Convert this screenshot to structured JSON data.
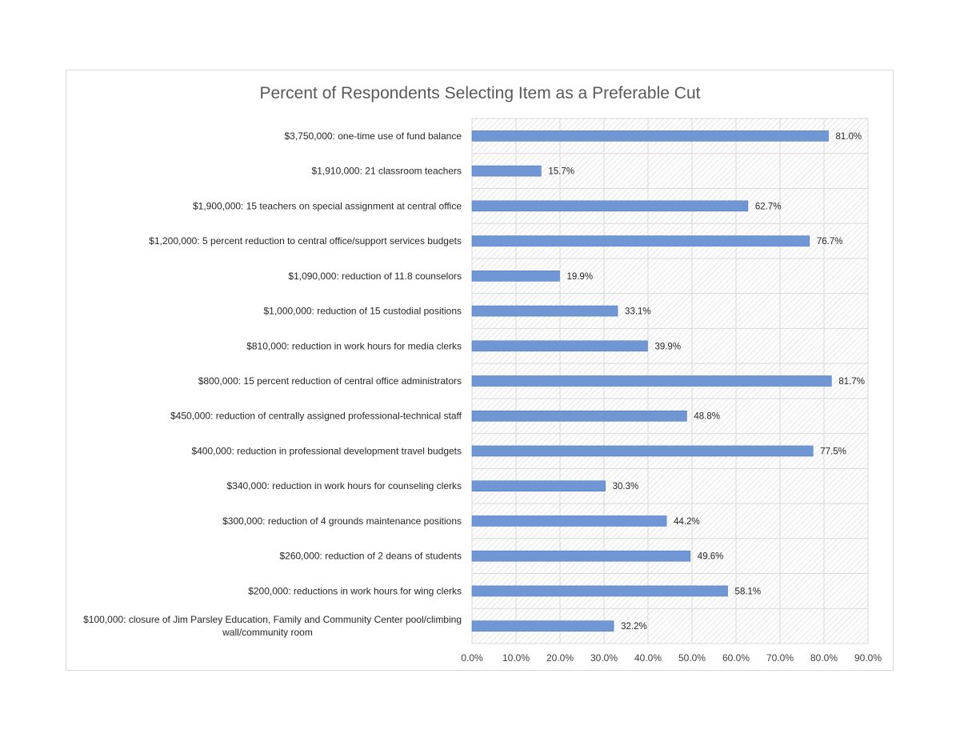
{
  "chart_data": {
    "type": "bar",
    "orientation": "horizontal",
    "title": "Percent of Respondents Selecting Item as a Preferable Cut",
    "xlabel": "",
    "ylabel": "",
    "xlim": [
      0,
      90
    ],
    "x_ticks": [
      0,
      10,
      20,
      30,
      40,
      50,
      60,
      70,
      80,
      90
    ],
    "x_tick_labels": [
      "0.0%",
      "10.0%",
      "20.0%",
      "30.0%",
      "40.0%",
      "50.0%",
      "60.0%",
      "70.0%",
      "80.0%",
      "90.0%"
    ],
    "grid": true,
    "legend": "none",
    "bar_color": "#7097d3",
    "categories": [
      "$3,750,000: one-time use of fund balance",
      "$1,910,000: 21 classroom teachers",
      "$1,900,000: 15 teachers on special assignment at central office",
      "$1,200,000: 5 percent reduction to central office/support services budgets",
      "$1,090,000: reduction of 11.8 counselors",
      "$1,000,000: reduction of 15 custodial positions",
      "$810,000: reduction in work hours for media clerks",
      "$800,000: 15 percent reduction of central office administrators",
      "$450,000: reduction of centrally assigned professional-technical staff",
      "$400,000: reduction in professional development travel budgets",
      "$340,000: reduction in work hours for counseling clerks",
      "$300,000: reduction of 4 grounds maintenance positions",
      "$260,000: reduction of 2 deans of students",
      "$200,000: reductions in work hours for wing clerks",
      "$100,000: closure of Jim Parsley Education, Family and Community Center pool/climbing wall/community room"
    ],
    "category_label_lines": [
      [
        "$3,750,000: one-time use of fund balance"
      ],
      [
        "$1,910,000: 21 classroom teachers"
      ],
      [
        "$1,900,000: 15 teachers on special assignment at central office"
      ],
      [
        "$1,200,000: 5 percent reduction to central office/support services budgets"
      ],
      [
        "$1,090,000: reduction of 11.8 counselors"
      ],
      [
        "$1,000,000: reduction of 15 custodial positions"
      ],
      [
        "$810,000: reduction in work hours for media clerks"
      ],
      [
        "$800,000: 15 percent reduction of central office administrators"
      ],
      [
        "$450,000: reduction of centrally assigned professional-technical staff"
      ],
      [
        "$400,000: reduction in professional development travel budgets"
      ],
      [
        "$340,000: reduction in work hours for counseling clerks"
      ],
      [
        "$300,000: reduction of 4 grounds maintenance positions"
      ],
      [
        "$260,000: reduction of 2 deans of students"
      ],
      [
        "$200,000: reductions in work hours for wing clerks"
      ],
      [
        "$100,000: closure of Jim Parsley Education, Family and Community Center pool/climbing",
        "wall/community room"
      ]
    ],
    "values": [
      81.0,
      15.7,
      62.7,
      76.7,
      19.9,
      33.1,
      39.9,
      81.7,
      48.8,
      77.5,
      30.3,
      44.2,
      49.6,
      58.1,
      32.2
    ],
    "data_labels": [
      "81.0%",
      "15.7%",
      "62.7%",
      "76.7%",
      "19.9%",
      "33.1%",
      "39.9%",
      "81.7%",
      "48.8%",
      "77.5%",
      "30.3%",
      "44.2%",
      "49.6%",
      "58.1%",
      "32.2%"
    ]
  }
}
